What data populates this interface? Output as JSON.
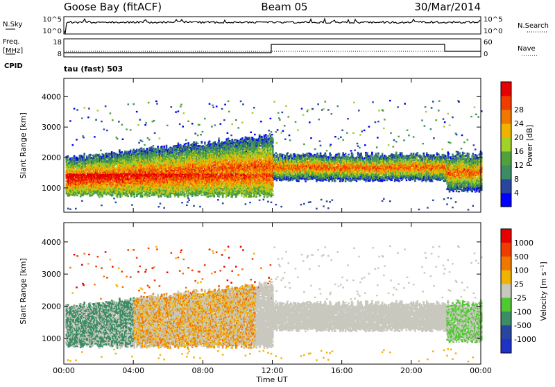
{
  "header": {
    "station": "Goose Bay (fitACF)",
    "beam": "Beam 05",
    "date": "30/Mar/2014"
  },
  "noise_panel": {
    "left_label": "N.Sky",
    "right_label": "N.Search",
    "left_ticks": [
      "10^5",
      "10^0"
    ],
    "right_ticks": [
      "10^5",
      "10^0"
    ]
  },
  "freq_panel": {
    "left_label_1": "Freq.",
    "left_label_2": "[MHz]",
    "right_label": "Nave",
    "left_ticks": [
      "18",
      "8"
    ],
    "right_ticks": [
      "60",
      "0"
    ],
    "cpid_label": "CPID",
    "mode_label": "tau (fast) 503"
  },
  "colors": {
    "power": [
      "#0000ff",
      "#2846a0",
      "#3c8c64",
      "#50a03c",
      "#a0d228",
      "#f0b400",
      "#f07800",
      "#f03c00",
      "#e60000"
    ],
    "velocity": [
      "#e60000",
      "#f03c00",
      "#f07800",
      "#f0b400",
      "#c8c8be",
      "#50c832",
      "#3c8c64",
      "#2846a0",
      "#1e32c8"
    ]
  },
  "chart_data": [
    {
      "type": "heatmap",
      "panel": "power",
      "ylabel": "Slant Range [km]",
      "yticks": [
        "1000",
        "2000",
        "3000",
        "4000"
      ],
      "xticks": [
        "00:00",
        "04:00",
        "08:00",
        "12:00",
        "16:00",
        "20:00",
        "00:00"
      ],
      "xlim": [
        0,
        24
      ],
      "ylim": [
        200,
        4600
      ],
      "colorbar_label": "Power [dB]",
      "colorbar_ticks": [
        "4",
        "8",
        "12",
        "16",
        "20",
        "24",
        "28"
      ]
    },
    {
      "type": "heatmap",
      "panel": "velocity",
      "ylabel": "Slant Range [km]",
      "yticks": [
        "1000",
        "2000",
        "3000",
        "4000"
      ],
      "xticks": [
        "00:00",
        "04:00",
        "08:00",
        "12:00",
        "16:00",
        "20:00",
        "00:00"
      ],
      "xlim": [
        0,
        24
      ],
      "ylim": [
        200,
        4600
      ],
      "xlabel": "Time UT",
      "colorbar_label": "Velocity [m s⁻¹]",
      "colorbar_ticks": [
        "1000",
        "500",
        "100",
        "25",
        "-25",
        "-100",
        "-500",
        "-1000"
      ]
    }
  ]
}
